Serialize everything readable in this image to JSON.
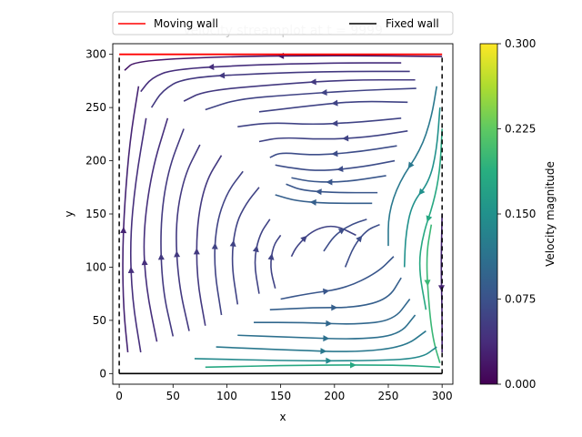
{
  "chart_data": {
    "type": "streamplot",
    "title": "Velocity streamplot at t = 9999",
    "xlabel": "x",
    "ylabel": "y",
    "xlim": [
      -6,
      310
    ],
    "ylim": [
      -10,
      310
    ],
    "xticks": [
      0,
      50,
      100,
      150,
      200,
      250,
      300
    ],
    "yticks": [
      0,
      50,
      100,
      150,
      200,
      250,
      300
    ],
    "legend": {
      "placement": "top-center",
      "entries": [
        {
          "label": "Moving wall",
          "color": "#ff0000",
          "style": "solid"
        },
        {
          "label": "Fixed wall",
          "color": "#000000",
          "style": "solid"
        }
      ]
    },
    "walls": {
      "moving": {
        "y": 300,
        "x": [
          0,
          300
        ],
        "color": "#ff0000"
      },
      "fixed_bottom": {
        "y": 0,
        "x": [
          0,
          300
        ],
        "color": "#000000"
      },
      "fixed_sides": {
        "x": [
          0,
          300
        ],
        "y": [
          0,
          300
        ],
        "color": "#000000",
        "style": "dashed"
      }
    },
    "colorbar": {
      "label": "Velocity magnitude",
      "range": [
        0.0,
        0.3
      ],
      "ticks": [
        "0.000",
        "0.075",
        "0.150",
        "0.225",
        "0.300"
      ],
      "colormap": "viridis"
    },
    "streamlines": [
      {
        "points": [
          [
            300,
            298
          ],
          [
            200,
            299
          ],
          [
            100,
            298
          ],
          [
            15,
            294
          ],
          [
            5,
            285
          ]
        ],
        "mag": 0.02
      },
      {
        "points": [
          [
            262,
            292
          ],
          [
            200,
            292
          ],
          [
            120,
            290
          ],
          [
            50,
            286
          ],
          [
            30,
            278
          ],
          [
            20,
            265
          ]
        ],
        "mag": 0.04
      },
      {
        "points": [
          [
            270,
            284
          ],
          [
            200,
            284
          ],
          [
            130,
            282
          ],
          [
            60,
            278
          ],
          [
            40,
            266
          ],
          [
            30,
            250
          ]
        ],
        "mag": 0.05
      },
      {
        "points": [
          [
            275,
            276
          ],
          [
            210,
            276
          ],
          [
            150,
            272
          ],
          [
            80,
            266
          ],
          [
            60,
            256
          ]
        ],
        "mag": 0.05
      },
      {
        "points": [
          [
            276,
            268
          ],
          [
            220,
            266
          ],
          [
            160,
            262
          ],
          [
            110,
            258
          ],
          [
            80,
            248
          ]
        ],
        "mag": 0.06
      },
      {
        "points": [
          [
            268,
            255
          ],
          [
            220,
            256
          ],
          [
            180,
            252
          ],
          [
            130,
            246
          ]
        ],
        "mag": 0.06
      },
      {
        "points": [
          [
            262,
            240
          ],
          [
            220,
            236
          ],
          [
            180,
            234
          ],
          [
            140,
            236
          ],
          [
            110,
            232
          ]
        ],
        "mag": 0.06
      },
      {
        "points": [
          [
            268,
            228
          ],
          [
            230,
            222
          ],
          [
            190,
            220
          ],
          [
            150,
            222
          ],
          [
            130,
            218
          ]
        ],
        "mag": 0.06
      },
      {
        "points": [
          [
            258,
            214
          ],
          [
            220,
            208
          ],
          [
            180,
            205
          ],
          [
            150,
            208
          ],
          [
            140,
            203
          ]
        ],
        "mag": 0.07
      },
      {
        "points": [
          [
            256,
            200
          ],
          [
            225,
            194
          ],
          [
            185,
            190
          ],
          [
            155,
            194
          ],
          [
            145,
            196
          ]
        ],
        "mag": 0.07
      },
      {
        "points": [
          [
            248,
            186
          ],
          [
            210,
            180
          ],
          [
            180,
            180
          ],
          [
            160,
            184
          ]
        ],
        "mag": 0.08
      },
      {
        "points": [
          [
            240,
            170
          ],
          [
            200,
            170
          ],
          [
            170,
            172
          ],
          [
            155,
            178
          ]
        ],
        "mag": 0.08
      },
      {
        "points": [
          [
            235,
            160
          ],
          [
            195,
            160
          ],
          [
            165,
            162
          ],
          [
            145,
            168
          ]
        ],
        "mag": 0.09
      },
      {
        "points": [
          [
            295,
            270
          ],
          [
            290,
            240
          ],
          [
            280,
            210
          ],
          [
            260,
            180
          ],
          [
            250,
            150
          ],
          [
            250,
            120
          ]
        ],
        "mag": 0.12
      },
      {
        "points": [
          [
            298,
            250
          ],
          [
            295,
            210
          ],
          [
            288,
            180
          ],
          [
            272,
            160
          ],
          [
            266,
            130
          ],
          [
            265,
            100
          ]
        ],
        "mag": 0.15
      },
      {
        "points": [
          [
            300,
            230
          ],
          [
            298,
            190
          ],
          [
            292,
            160
          ],
          [
            282,
            130
          ],
          [
            278,
            100
          ],
          [
            285,
            60
          ]
        ],
        "mag": 0.18
      },
      {
        "points": [
          [
            290,
            140
          ],
          [
            285,
            110
          ],
          [
            288,
            60
          ],
          [
            292,
            30
          ],
          [
            298,
            10
          ]
        ],
        "mag": 0.2
      },
      {
        "points": [
          [
            300,
            150
          ],
          [
            299,
            100
          ],
          [
            300,
            60
          ],
          [
            300,
            20
          ]
        ],
        "mag": 0.03
      },
      {
        "points": [
          [
            8,
            20
          ],
          [
            4,
            60
          ],
          [
            3,
            110
          ],
          [
            5,
            160
          ],
          [
            10,
            220
          ],
          [
            18,
            270
          ]
        ],
        "mag": 0.03
      },
      {
        "points": [
          [
            20,
            20
          ],
          [
            12,
            70
          ],
          [
            10,
            125
          ],
          [
            15,
            180
          ],
          [
            25,
            240
          ]
        ],
        "mag": 0.04
      },
      {
        "points": [
          [
            35,
            30
          ],
          [
            25,
            80
          ],
          [
            22,
            130
          ],
          [
            30,
            190
          ],
          [
            45,
            240
          ]
        ],
        "mag": 0.04
      },
      {
        "points": [
          [
            50,
            35
          ],
          [
            40,
            80
          ],
          [
            38,
            140
          ],
          [
            45,
            190
          ],
          [
            60,
            230
          ]
        ],
        "mag": 0.05
      },
      {
        "points": [
          [
            65,
            40
          ],
          [
            55,
            85
          ],
          [
            52,
            140
          ],
          [
            60,
            185
          ],
          [
            75,
            215
          ]
        ],
        "mag": 0.05
      },
      {
        "points": [
          [
            80,
            45
          ],
          [
            72,
            90
          ],
          [
            72,
            140
          ],
          [
            80,
            180
          ],
          [
            95,
            205
          ]
        ],
        "mag": 0.05
      },
      {
        "points": [
          [
            95,
            55
          ],
          [
            88,
            100
          ],
          [
            90,
            140
          ],
          [
            100,
            170
          ],
          [
            115,
            190
          ]
        ],
        "mag": 0.06
      },
      {
        "points": [
          [
            110,
            65
          ],
          [
            104,
            105
          ],
          [
            108,
            140
          ],
          [
            118,
            160
          ],
          [
            130,
            175
          ]
        ],
        "mag": 0.06
      },
      {
        "points": [
          [
            130,
            75
          ],
          [
            125,
            105
          ],
          [
            130,
            130
          ],
          [
            140,
            145
          ]
        ],
        "mag": 0.06
      },
      {
        "points": [
          [
            145,
            80
          ],
          [
            140,
            100
          ],
          [
            143,
            120
          ],
          [
            150,
            130
          ]
        ],
        "mag": 0.06
      },
      {
        "points": [
          [
            160,
            110
          ],
          [
            165,
            120
          ],
          [
            180,
            135
          ],
          [
            200,
            140
          ],
          [
            220,
            130
          ]
        ],
        "mag": 0.06
      },
      {
        "points": [
          [
            190,
            115
          ],
          [
            200,
            130
          ],
          [
            215,
            140
          ],
          [
            230,
            145
          ]
        ],
        "mag": 0.07
      },
      {
        "points": [
          [
            210,
            100
          ],
          [
            218,
            120
          ],
          [
            230,
            135
          ],
          [
            242,
            140
          ]
        ],
        "mag": 0.07
      },
      {
        "points": [
          [
            150,
            70
          ],
          [
            175,
            75
          ],
          [
            210,
            80
          ],
          [
            240,
            95
          ],
          [
            255,
            110
          ]
        ],
        "mag": 0.08
      },
      {
        "points": [
          [
            140,
            60
          ],
          [
            180,
            62
          ],
          [
            220,
            62
          ],
          [
            250,
            70
          ],
          [
            262,
            90
          ]
        ],
        "mag": 0.09
      },
      {
        "points": [
          [
            125,
            48
          ],
          [
            170,
            48
          ],
          [
            220,
            46
          ],
          [
            255,
            50
          ],
          [
            270,
            70
          ]
        ],
        "mag": 0.1
      },
      {
        "points": [
          [
            110,
            36
          ],
          [
            165,
            34
          ],
          [
            220,
            32
          ],
          [
            260,
            36
          ],
          [
            275,
            55
          ]
        ],
        "mag": 0.11
      },
      {
        "points": [
          [
            90,
            25
          ],
          [
            160,
            22
          ],
          [
            220,
            20
          ],
          [
            265,
            25
          ],
          [
            285,
            40
          ]
        ],
        "mag": 0.12
      },
      {
        "points": [
          [
            70,
            14
          ],
          [
            160,
            12
          ],
          [
            230,
            12
          ],
          [
            280,
            14
          ],
          [
            295,
            25
          ]
        ],
        "mag": 0.14
      },
      {
        "points": [
          [
            80,
            6
          ],
          [
            175,
            8
          ],
          [
            260,
            8
          ],
          [
            298,
            6
          ]
        ],
        "mag": 0.18
      }
    ]
  }
}
